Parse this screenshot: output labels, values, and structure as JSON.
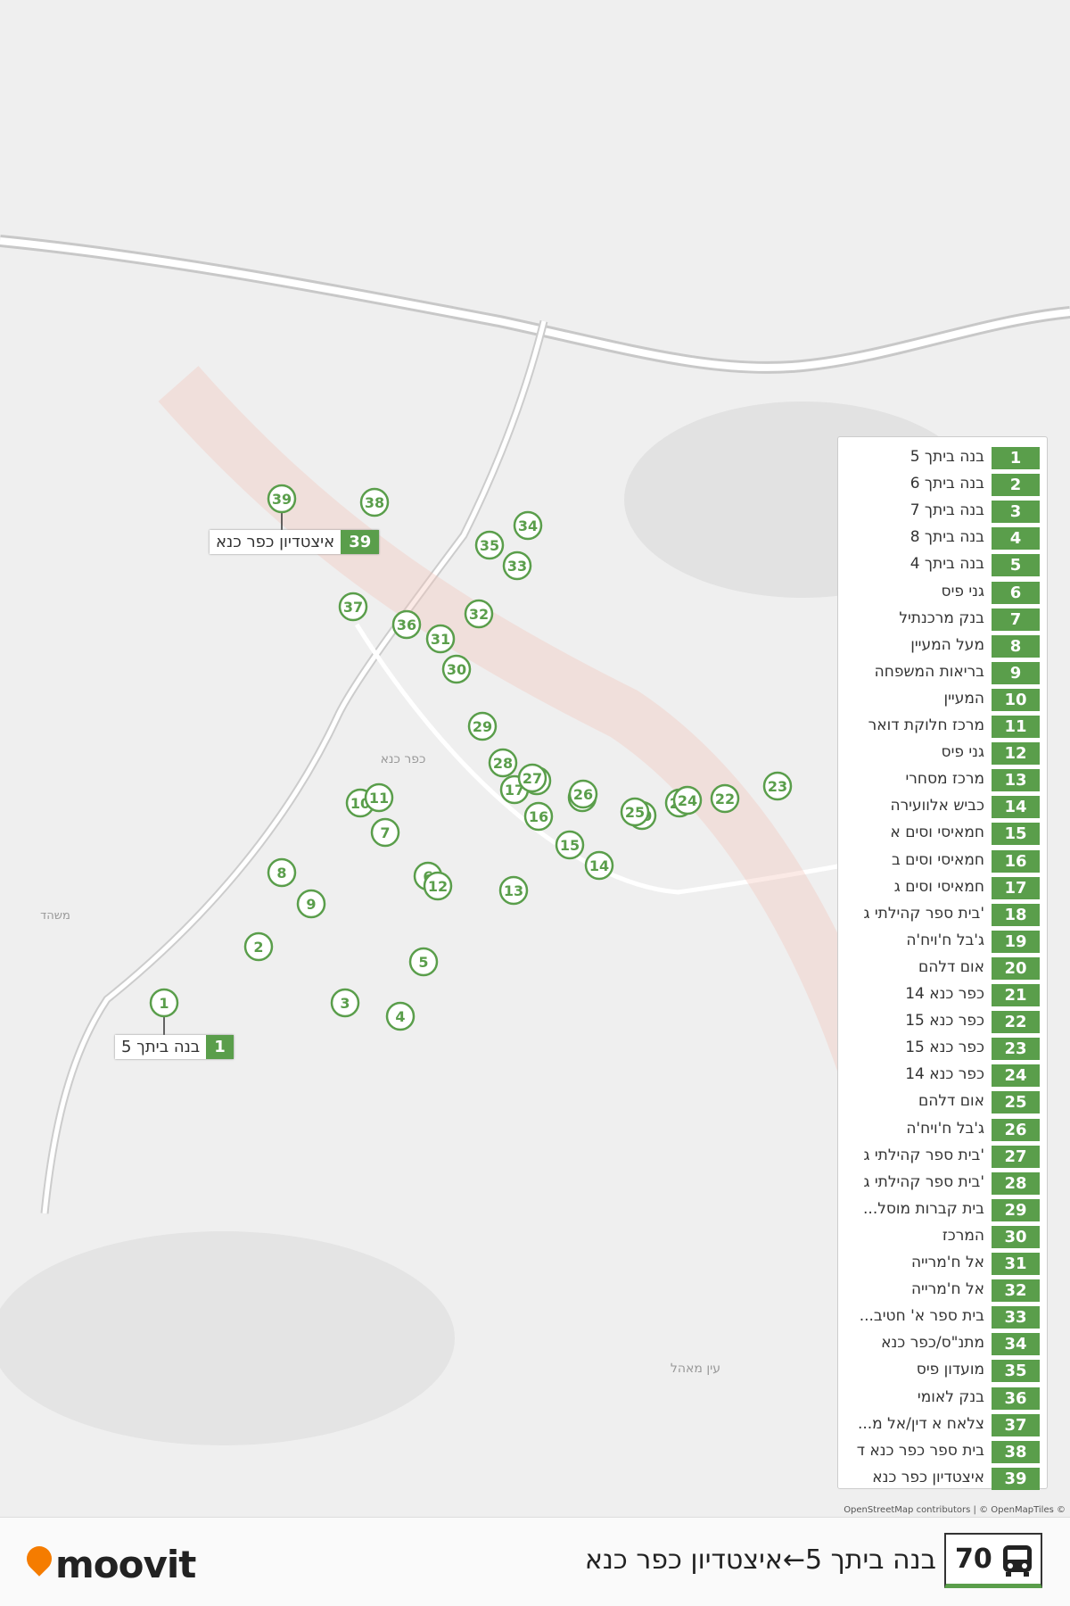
{
  "route": {
    "number": "70",
    "title": "בנה ביתך 5←איצטדיון כפר כנא"
  },
  "logo": "moovit",
  "attribution": "OpenStreetMap contributors | © OpenMapTiles ©",
  "map_labels": [
    "כפר כנא",
    "משהד",
    "עין מאהל"
  ],
  "stops": [
    {
      "number": "1",
      "name": "בנה ביתך 5"
    },
    {
      "number": "2",
      "name": "בנה ביתך 6"
    },
    {
      "number": "3",
      "name": "בנה ביתך 7"
    },
    {
      "number": "4",
      "name": "בנה ביתך 8"
    },
    {
      "number": "5",
      "name": "בנה ביתך 4"
    },
    {
      "number": "6",
      "name": "גני פיס"
    },
    {
      "number": "7",
      "name": "בנק מרכנתיל"
    },
    {
      "number": "8",
      "name": "מעל המעיין"
    },
    {
      "number": "9",
      "name": "בריאות המשפחה"
    },
    {
      "number": "10",
      "name": "המעיין"
    },
    {
      "number": "11",
      "name": "מרכז חלוקת דואר"
    },
    {
      "number": "12",
      "name": "גני פיס"
    },
    {
      "number": "13",
      "name": "מרכז מסחרי"
    },
    {
      "number": "14",
      "name": "כביש אלוועירה"
    },
    {
      "number": "15",
      "name": "חמאיסי וסים א"
    },
    {
      "number": "16",
      "name": "חמאיסי וסים ב"
    },
    {
      "number": "17",
      "name": "חמאיסי וסים ג"
    },
    {
      "number": "18",
      "name": "'בית ספר קהילתי ג"
    },
    {
      "number": "19",
      "name": "ג'בל ח'ויח'ה"
    },
    {
      "number": "20",
      "name": "אום דלהם"
    },
    {
      "number": "21",
      "name": "כפר כנא 14"
    },
    {
      "number": "22",
      "name": "כפר כנא 15"
    },
    {
      "number": "23",
      "name": "כפר כנא 15"
    },
    {
      "number": "24",
      "name": "כפר כנא 14"
    },
    {
      "number": "25",
      "name": "אום דלהם"
    },
    {
      "number": "26",
      "name": "ג'בל ח'ויח'ה"
    },
    {
      "number": "27",
      "name": "'בית ספר קהילתי ג"
    },
    {
      "number": "28",
      "name": "'בית ספר קהילתי ג"
    },
    {
      "number": "29",
      "name": "בית קברות מוסל..."
    },
    {
      "number": "30",
      "name": "המרכז"
    },
    {
      "number": "31",
      "name": "אל ח'מרייה"
    },
    {
      "number": "32",
      "name": "אל ח'מרייה"
    },
    {
      "number": "33",
      "name": "בית ספר א' חטיב..."
    },
    {
      "number": "34",
      "name": "מתנ\"ס/כפר כנא"
    },
    {
      "number": "35",
      "name": "מועדון פיס"
    },
    {
      "number": "36",
      "name": "בנק לאומי"
    },
    {
      "number": "37",
      "name": "צלאח א דין/אל מ..."
    },
    {
      "number": "38",
      "name": "בית ספר כפר כנא ד"
    },
    {
      "number": "39",
      "name": "איצטדיון כפר כנא"
    }
  ]
}
